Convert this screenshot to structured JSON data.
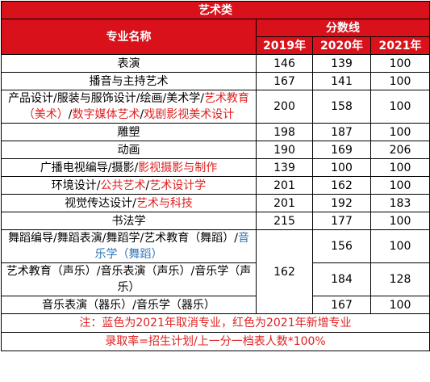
{
  "table": {
    "title": "艺术类",
    "header": {
      "name": "专业名称",
      "score": "分数线",
      "years": [
        "2019年",
        "2020年",
        "2021年"
      ]
    },
    "rows": [
      {
        "name": [
          {
            "text": "表演",
            "color": "#000000"
          }
        ],
        "scores": [
          146,
          139,
          100
        ]
      },
      {
        "name": [
          {
            "text": "播音与主持艺术",
            "color": "#000000"
          }
        ],
        "scores": [
          167,
          141,
          100
        ]
      },
      {
        "name": [
          {
            "text": "产品设计/服装与服饰设计/绘画/美术学/",
            "color": "#000000"
          },
          {
            "text": "艺术教育（美术）",
            "color": "#e02020"
          },
          {
            "text": "/",
            "color": "#000000"
          },
          {
            "text": "数字媒体艺术",
            "color": "#e02020"
          },
          {
            "text": "/",
            "color": "#000000"
          },
          {
            "text": "戏剧影视美术设计",
            "color": "#e02020"
          }
        ],
        "scores": [
          200,
          158,
          100
        ]
      },
      {
        "name": [
          {
            "text": "雕塑",
            "color": "#000000"
          }
        ],
        "scores": [
          198,
          187,
          100
        ]
      },
      {
        "name": [
          {
            "text": "动画",
            "color": "#000000"
          }
        ],
        "scores": [
          190,
          169,
          206
        ]
      },
      {
        "name": [
          {
            "text": "广播电视编导/摄影/",
            "color": "#000000"
          },
          {
            "text": "影视摄影与制作",
            "color": "#e02020"
          }
        ],
        "scores": [
          139,
          100,
          100
        ]
      },
      {
        "name": [
          {
            "text": "环境设计/",
            "color": "#000000"
          },
          {
            "text": "公共艺术",
            "color": "#e02020"
          },
          {
            "text": "/",
            "color": "#000000"
          },
          {
            "text": "艺术设计学",
            "color": "#e02020"
          }
        ],
        "scores": [
          201,
          162,
          100
        ]
      },
      {
        "name": [
          {
            "text": "视觉传达设计/",
            "color": "#000000"
          },
          {
            "text": "艺术与科技",
            "color": "#e02020"
          }
        ],
        "scores": [
          201,
          192,
          183
        ]
      },
      {
        "name": [
          {
            "text": "书法学",
            "color": "#000000"
          }
        ],
        "scores": [
          215,
          177,
          100
        ]
      }
    ],
    "group": {
      "score_2019": 162,
      "rows": [
        {
          "name": [
            {
              "text": "舞蹈编导/舞蹈表演/舞蹈学/艺术教育（舞蹈）/",
              "color": "#000000"
            },
            {
              "text": "音乐学（舞蹈）",
              "color": "#2e75b6"
            }
          ],
          "scores": [
            156,
            100
          ]
        },
        {
          "name": [
            {
              "text": "艺术教育（声乐）/音乐表演（声乐）/音乐学（声乐）",
              "color": "#000000"
            }
          ],
          "scores": [
            184,
            128
          ]
        },
        {
          "name": [
            {
              "text": "音乐表演（器乐）/音乐学（器乐）",
              "color": "#000000"
            }
          ],
          "scores": [
            167,
            100
          ]
        }
      ]
    },
    "notes": [
      "注：蓝色为2021年取消专业，红色为2021年新增专业",
      "录取率=招生计划/上一分一档表人数*100%"
    ]
  }
}
